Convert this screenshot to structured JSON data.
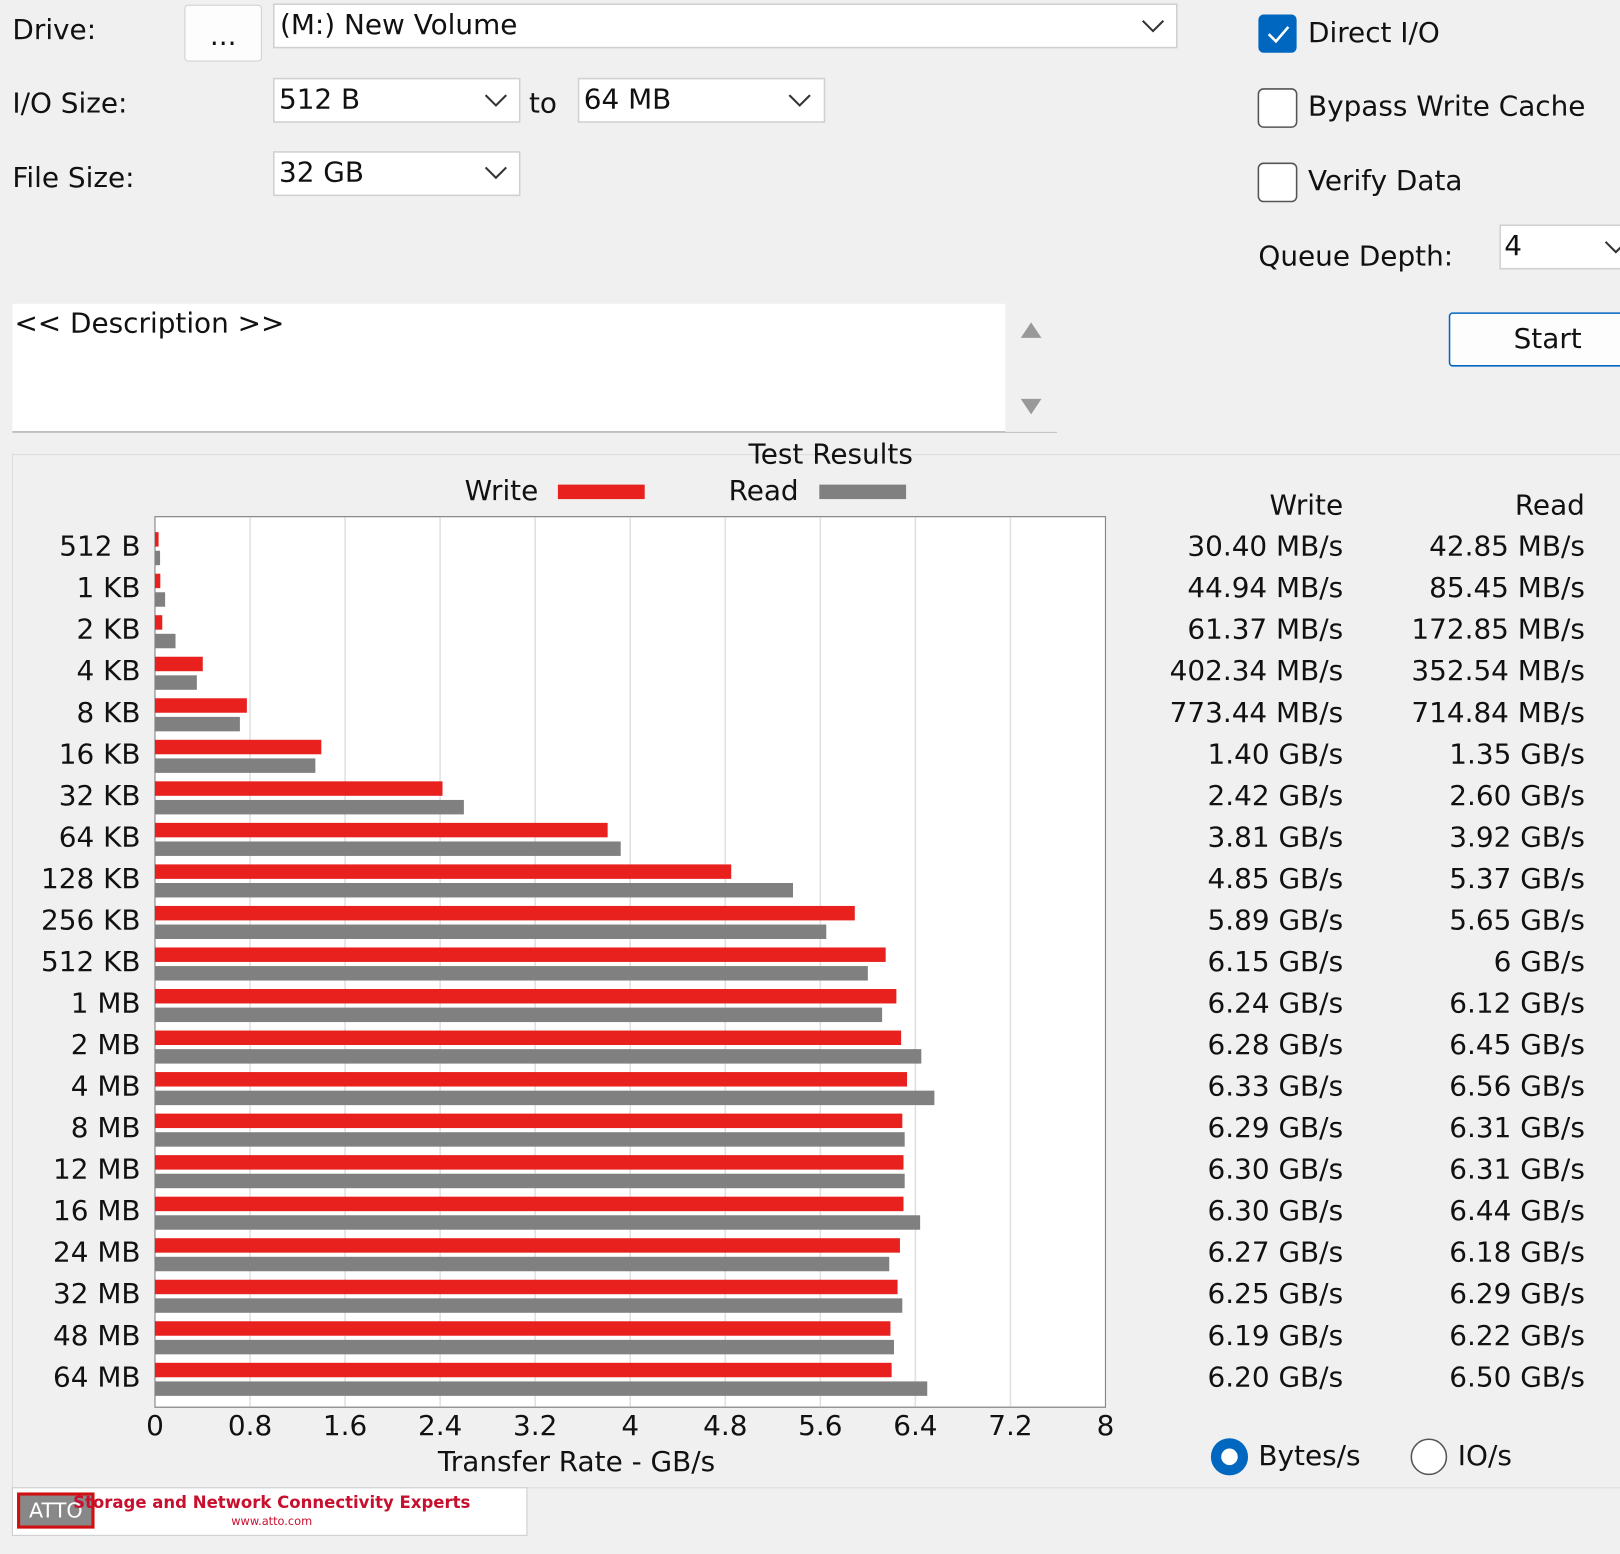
{
  "form": {
    "drive_label": "Drive:",
    "browse": "...",
    "drive": "(M:) New Volume",
    "io_size_label": "I/O Size:",
    "io_from": "512 B",
    "to": "to",
    "io_to": "64 MB",
    "file_size_label": "File Size:",
    "file_size": "32 GB",
    "direct_io": "Direct I/O",
    "bypass": "Bypass Write Cache",
    "verify": "Verify Data",
    "queue_depth_label": "Queue Depth:",
    "queue_depth": "4",
    "start": "Start",
    "description": "<< Description >>",
    "bytes": "Bytes/s",
    "ios": "IO/s"
  },
  "banner": {
    "logo": "ATTO",
    "tagline": "Storage and Network Connectivity Experts",
    "url": "www.atto.com"
  },
  "chart_data": {
    "type": "bar",
    "orientation": "horizontal",
    "title": "Test Results",
    "x_label": "Transfer Rate - GB/s",
    "categories": [
      "512 B",
      "1 KB",
      "2 KB",
      "4 KB",
      "8 KB",
      "16 KB",
      "32 KB",
      "64 KB",
      "128 KB",
      "256 KB",
      "512 KB",
      "1 MB",
      "2 MB",
      "4 MB",
      "8 MB",
      "12 MB",
      "16 MB",
      "24 MB",
      "32 MB",
      "48 MB",
      "64 MB"
    ],
    "series": [
      {
        "name": "Write",
        "color": "#e8201e",
        "values": [
          0.0304,
          0.04494,
          0.06137,
          0.40234,
          0.77344,
          1.4,
          2.42,
          3.81,
          4.85,
          5.89,
          6.15,
          6.24,
          6.28,
          6.33,
          6.29,
          6.3,
          6.3,
          6.27,
          6.25,
          6.19,
          6.2
        ],
        "value_labels": [
          "30.40 MB/s",
          "44.94 MB/s",
          "61.37 MB/s",
          "402.34 MB/s",
          "773.44 MB/s",
          "1.40 GB/s",
          "2.42 GB/s",
          "3.81 GB/s",
          "4.85 GB/s",
          "5.89 GB/s",
          "6.15 GB/s",
          "6.24 GB/s",
          "6.28 GB/s",
          "6.33 GB/s",
          "6.29 GB/s",
          "6.30 GB/s",
          "6.30 GB/s",
          "6.27 GB/s",
          "6.25 GB/s",
          "6.19 GB/s",
          "6.20 GB/s"
        ]
      },
      {
        "name": "Read",
        "color": "#808080",
        "values": [
          0.04285,
          0.08545,
          0.17285,
          0.35254,
          0.71484,
          1.35,
          2.6,
          3.92,
          5.37,
          5.65,
          6,
          6.12,
          6.45,
          6.56,
          6.31,
          6.31,
          6.44,
          6.18,
          6.29,
          6.22,
          6.5
        ],
        "value_labels": [
          "42.85 MB/s",
          "85.45 MB/s",
          "172.85 MB/s",
          "352.54 MB/s",
          "714.84 MB/s",
          "1.35 GB/s",
          "2.60 GB/s",
          "3.92 GB/s",
          "5.37 GB/s",
          "5.65 GB/s",
          "6 GB/s",
          "6.12 GB/s",
          "6.45 GB/s",
          "6.56 GB/s",
          "6.31 GB/s",
          "6.31 GB/s",
          "6.44 GB/s",
          "6.18 GB/s",
          "6.29 GB/s",
          "6.22 GB/s",
          "6.50 GB/s"
        ]
      }
    ],
    "xlim": [
      0,
      8
    ],
    "xticks": [
      0,
      0.8,
      1.6,
      2.4,
      3.2,
      4,
      4.8,
      5.6,
      6.4,
      7.2,
      8
    ],
    "grid": true
  }
}
